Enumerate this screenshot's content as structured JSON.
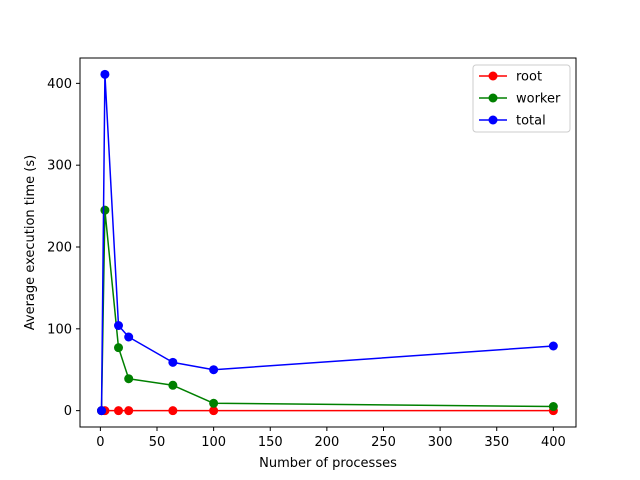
{
  "chart_data": {
    "type": "line",
    "title": "",
    "xlabel": "Number of processes",
    "ylabel": "Average execution time (s)",
    "xlim": [
      -18,
      420
    ],
    "ylim": [
      -20,
      431
    ],
    "xticks": [
      0,
      50,
      100,
      150,
      200,
      250,
      300,
      350,
      400
    ],
    "yticks": [
      0,
      100,
      200,
      300,
      400
    ],
    "grid": false,
    "legend": "top-right",
    "series": [
      {
        "name": "root",
        "color": "#ff0000",
        "x": [
          1,
          4,
          16,
          25,
          64,
          100,
          400
        ],
        "y": [
          0,
          0,
          0,
          0,
          0,
          0,
          0
        ]
      },
      {
        "name": "worker",
        "color": "#008000",
        "x": [
          1,
          4,
          16,
          25,
          64,
          100,
          400
        ],
        "y": [
          0,
          245,
          77,
          39,
          31,
          9,
          5
        ]
      },
      {
        "name": "total",
        "color": "#0000ff",
        "x": [
          1,
          4,
          16,
          25,
          64,
          100,
          400
        ],
        "y": [
          0,
          411,
          104,
          90,
          59,
          50,
          79
        ]
      }
    ]
  }
}
